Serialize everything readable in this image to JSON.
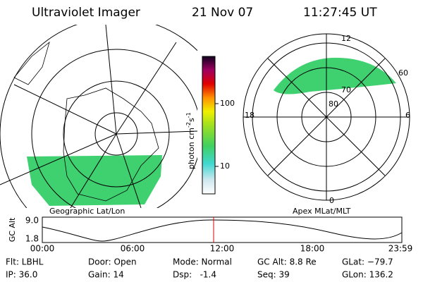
{
  "header": {
    "title": "Ultraviolet Imager",
    "date": "21 Nov 07",
    "time": "11:27:45 UT"
  },
  "left_panel": {
    "label": "Geographic Lat/Lon"
  },
  "colorbar": {
    "label": "photon cm",
    "exp1": "-2",
    "unit2": "s",
    "exp2": "-1",
    "ticks": [
      "100",
      "10"
    ]
  },
  "right_panel": {
    "label": "Apex MLat/MLT",
    "mlt_labels": [
      "12",
      "18",
      "6",
      "0"
    ],
    "mlat_labels": [
      "80",
      "70",
      "60"
    ]
  },
  "altitude_plot": {
    "ylabel": "GC Alt",
    "yticks": [
      "9.0",
      "1.8"
    ],
    "xticks": [
      "00:00",
      "06:00",
      "12:00",
      "18:00",
      "23:59"
    ]
  },
  "footer": {
    "rows": [
      [
        "Flt: LBHL",
        "Door: Open",
        "Mode: Normal",
        "GC Alt: 8.8 Re",
        "GLat: −79.7"
      ],
      [
        "IP: 36.0",
        "Gain: 14",
        "Dsp:   -1.4",
        "Seq: 39",
        "GLon: 136.2"
      ]
    ]
  }
}
